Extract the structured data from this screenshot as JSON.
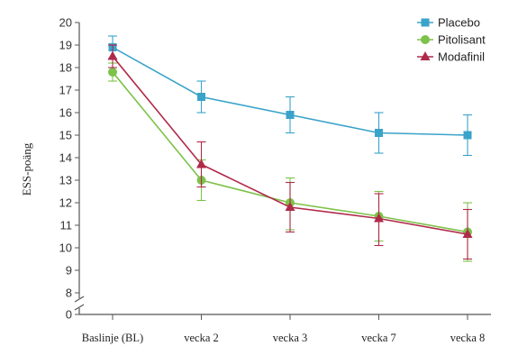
{
  "chart_data": {
    "type": "line",
    "ylabel": "ESS-poäng",
    "xlabel": "",
    "categories": [
      "Baslinje (BL)",
      "vecka 2",
      "vecka 3",
      "vecka 7",
      "vecka 8"
    ],
    "y_ticks": [
      0,
      8,
      9,
      10,
      11,
      12,
      13,
      14,
      15,
      16,
      17,
      18,
      19,
      20
    ],
    "ylim": [
      8,
      20
    ],
    "axis_break": true,
    "legend_position": "top-right",
    "series": [
      {
        "name": "Placebo",
        "color": "#3aa3c9",
        "marker": "square",
        "values": [
          18.9,
          16.7,
          15.9,
          15.1,
          15.0
        ],
        "err_low": [
          18.4,
          16.0,
          15.1,
          14.2,
          14.1
        ],
        "err_high": [
          19.4,
          17.4,
          16.7,
          16.0,
          15.9
        ]
      },
      {
        "name": "Pitolisant",
        "color": "#7dc24a",
        "marker": "circle",
        "values": [
          17.8,
          13.0,
          12.0,
          11.4,
          10.7
        ],
        "err_low": [
          17.4,
          12.1,
          10.8,
          10.3,
          9.4
        ],
        "err_high": [
          18.2,
          13.9,
          13.1,
          12.5,
          12.0
        ]
      },
      {
        "name": "Modafinil",
        "color": "#b02a4a",
        "marker": "triangle",
        "values": [
          18.5,
          13.7,
          11.8,
          11.3,
          10.6
        ],
        "err_low": [
          18.0,
          12.7,
          10.7,
          10.1,
          9.5
        ],
        "err_high": [
          19.0,
          14.7,
          12.9,
          12.4,
          11.7
        ]
      }
    ]
  }
}
